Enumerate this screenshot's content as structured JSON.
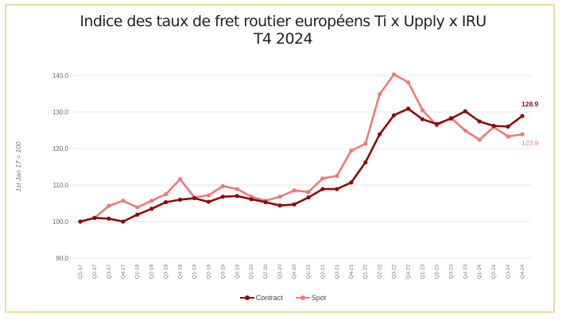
{
  "chart_data": {
    "type": "line",
    "title": "Indice des taux de fret routier européens Ti x Upply x IRU",
    "subtitle": "T4 2024",
    "xlabel": "",
    "ylabel": "1st Jan 17 = 100",
    "ylim": [
      90,
      140
    ],
    "yticks": [
      "90.0",
      "100.0",
      "110.0",
      "120.0",
      "130.0",
      "140.0"
    ],
    "grid": true,
    "legend_position": "bottom",
    "categories": [
      "Q1-17",
      "Q2-17",
      "Q3-17",
      "Q4-17",
      "Q1-18",
      "Q2-18",
      "Q3-18",
      "Q4-18",
      "Q1-19",
      "Q2-19",
      "Q3-19",
      "Q4-19",
      "Q1-20",
      "Q2-20",
      "Q3-20",
      "Q4-20",
      "Q1-21",
      "Q2-21",
      "Q3-21",
      "Q4-21",
      "Q1-22",
      "Q2-22",
      "Q3-22",
      "Q4-22",
      "Q1-23",
      "Q2-23",
      "Q3-23",
      "Q4-23",
      "Q1-24",
      "Q2-24",
      "Q3-24",
      "Q4-24"
    ],
    "series": [
      {
        "name": "Contract",
        "color": "#8b0a0a",
        "values": [
          100.0,
          101.0,
          100.8,
          100.0,
          101.9,
          103.5,
          105.3,
          106.0,
          106.4,
          105.4,
          106.8,
          107.0,
          106.1,
          105.3,
          104.4,
          104.7,
          106.6,
          108.9,
          108.9,
          110.7,
          116.2,
          123.9,
          129.1,
          130.9,
          128.0,
          126.7,
          128.2,
          130.2,
          127.4,
          126.2,
          126.0,
          128.9
        ],
        "end_label": "128.9"
      },
      {
        "name": "Spot",
        "color": "#f07878",
        "values": [
          100.0,
          101.0,
          104.3,
          105.7,
          103.9,
          105.7,
          107.5,
          111.6,
          106.6,
          107.2,
          109.7,
          108.9,
          106.8,
          105.7,
          106.8,
          108.5,
          108.1,
          111.8,
          112.5,
          119.4,
          121.3,
          134.9,
          140.3,
          138.1,
          130.5,
          126.3,
          128.4,
          124.9,
          122.4,
          125.9,
          123.3,
          123.9
        ],
        "end_label": "123.9"
      }
    ]
  },
  "colors": {
    "frame_border": "#eadc9c",
    "grid": "#e6e6e6",
    "contract": "#8b0a0a",
    "spot": "#f07878"
  }
}
